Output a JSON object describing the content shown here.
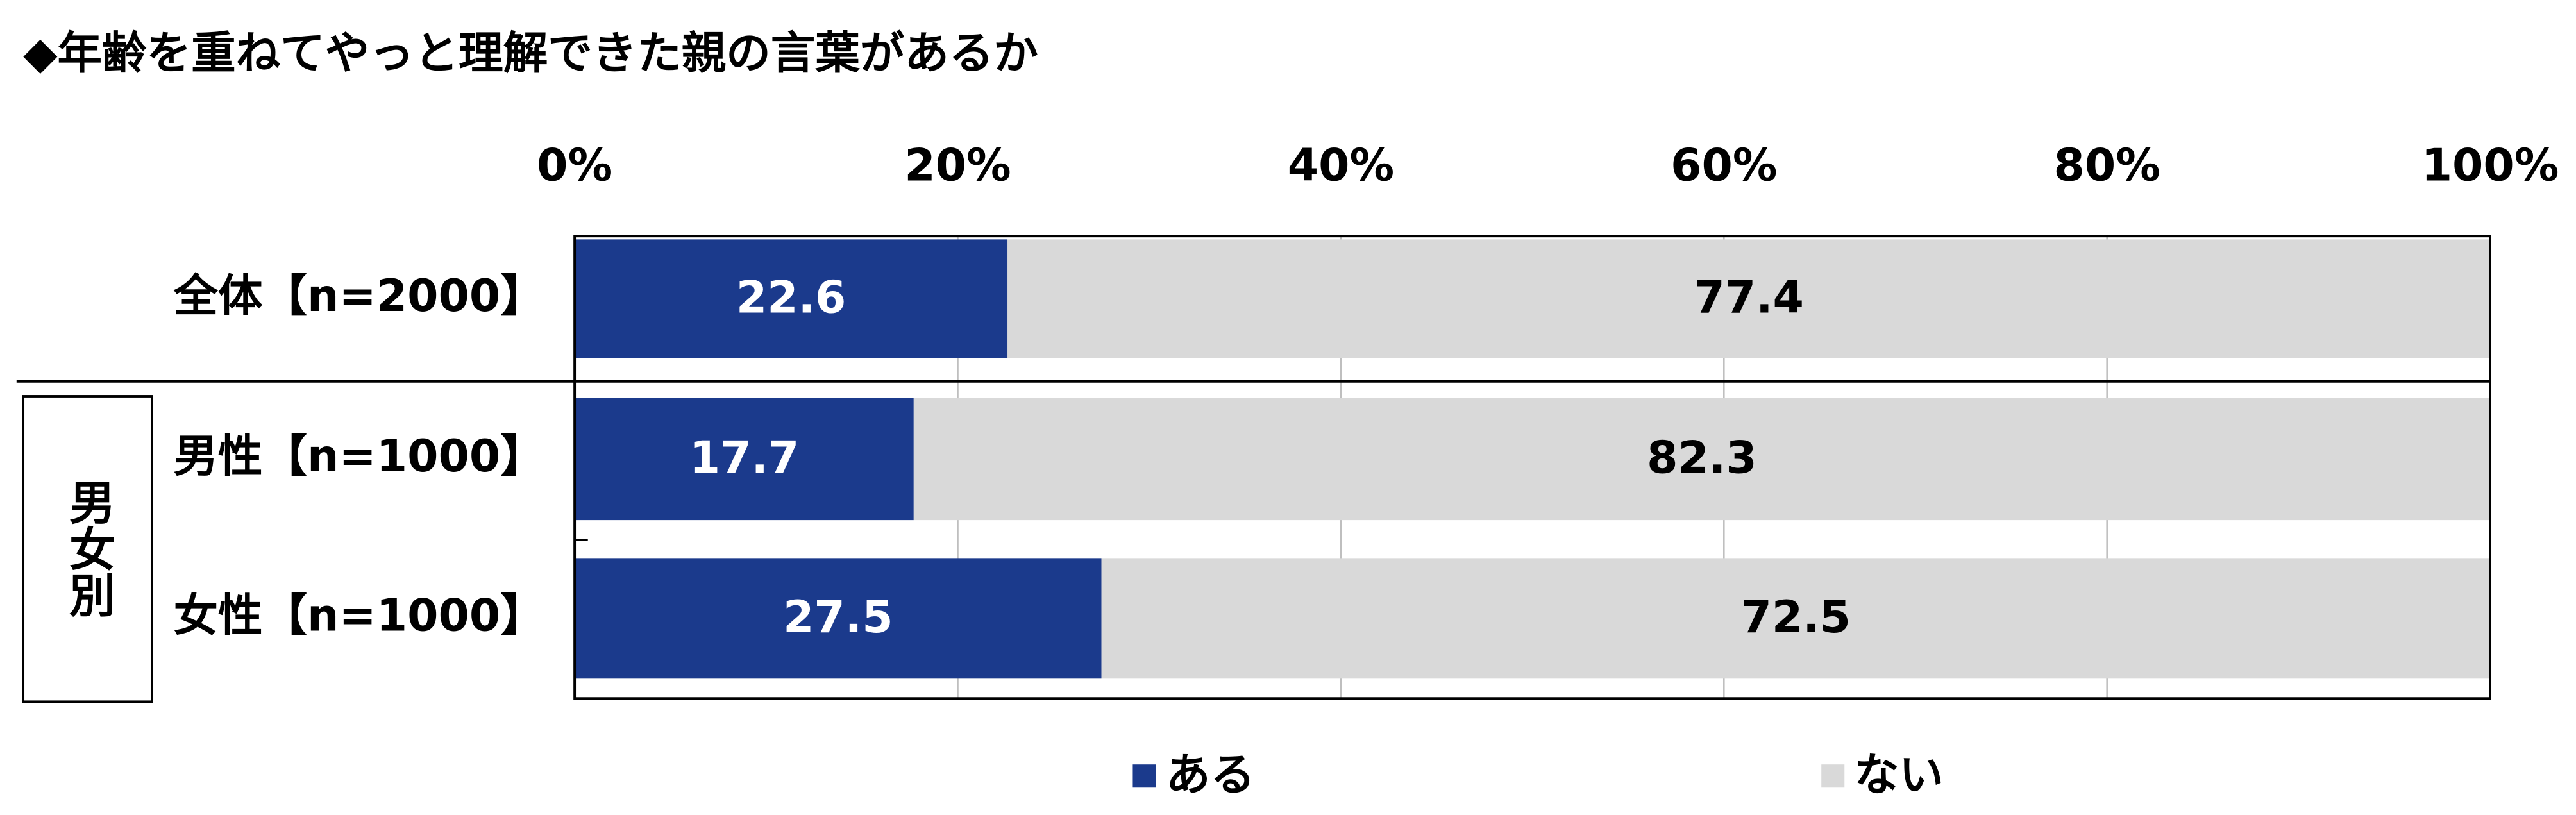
{
  "chart_data": {
    "type": "stacked_barh",
    "title": "◆年齢を重ねてやっと理解できた親の言葉があるか",
    "group_label": "男女別",
    "categories": [
      "全体【n=2000】",
      "男性【n=1000】",
      "女性【n=1000】"
    ],
    "series": [
      {
        "name": "ある",
        "color": "#1b3a8c",
        "values": [
          22.6,
          17.7,
          27.5
        ]
      },
      {
        "name": "ない",
        "color": "#d9d9d9",
        "values": [
          77.4,
          82.3,
          72.5
        ]
      }
    ],
    "xlim": [
      0,
      100
    ],
    "xticks": [
      {
        "value": 0,
        "label": "0%"
      },
      {
        "value": 20,
        "label": "20%"
      },
      {
        "value": 40,
        "label": "40%"
      },
      {
        "value": 60,
        "label": "60%"
      },
      {
        "value": 80,
        "label": "80%"
      },
      {
        "value": 100,
        "label": "100%"
      }
    ],
    "grid": true,
    "legend": "bottom"
  }
}
